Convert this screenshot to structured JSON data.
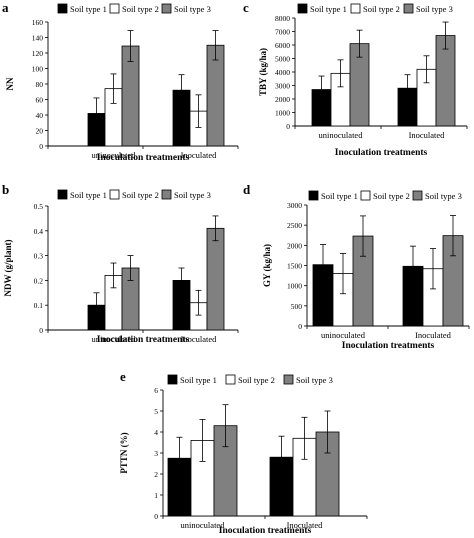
{
  "legend": [
    "Soil type 1",
    "Soil type 2",
    "Soil type 3"
  ],
  "colors": {
    "soil_type_1": "#000000",
    "soil_type_2": "#ffffff",
    "soil_type_3": "#808080"
  },
  "chart_data": [
    {
      "panel_label": "a",
      "type": "bar",
      "categories": [
        "uninoculated",
        "Inoculated"
      ],
      "series": [
        {
          "name": "Soil type 1",
          "values": [
            42,
            72
          ],
          "errors": [
            20,
            20
          ]
        },
        {
          "name": "Soil type 2",
          "values": [
            74,
            45
          ],
          "errors": [
            19,
            21
          ]
        },
        {
          "name": "Soil type 3",
          "values": [
            129,
            130
          ],
          "errors": [
            20,
            19
          ]
        }
      ],
      "xlabel": "Inoculation treatments",
      "ylabel": "NN",
      "ylim": [
        0,
        160
      ],
      "yticks": [
        "0",
        "20",
        "40",
        "60",
        "80",
        "100",
        "120",
        "140",
        "160"
      ],
      "legend_position": "top",
      "grid": false
    },
    {
      "panel_label": "b",
      "type": "bar",
      "categories": [
        "uninoculated",
        "Inoculated"
      ],
      "series": [
        {
          "name": "Soil type 1",
          "values": [
            0.1,
            0.2
          ],
          "errors": [
            0.05,
            0.05
          ]
        },
        {
          "name": "Soil type 2",
          "values": [
            0.22,
            0.11
          ],
          "errors": [
            0.05,
            0.05
          ]
        },
        {
          "name": "Soil type 3",
          "values": [
            0.25,
            0.41
          ],
          "errors": [
            0.05,
            0.05
          ]
        }
      ],
      "xlabel": "Inoculation treatments",
      "ylabel": "NDW (g/plant)",
      "ylim": [
        0,
        0.5
      ],
      "yticks": [
        "0",
        "0.1",
        "0.2",
        "0.3",
        "0.4",
        "0.5"
      ],
      "legend_position": "top",
      "grid": false
    },
    {
      "panel_label": "c",
      "type": "bar",
      "categories": [
        "uninoculated",
        "Inoculated"
      ],
      "series": [
        {
          "name": "Soil type 1",
          "values": [
            2700,
            2800
          ],
          "errors": [
            1000,
            1000
          ]
        },
        {
          "name": "Soil type 2",
          "values": [
            3900,
            4200
          ],
          "errors": [
            1000,
            1000
          ]
        },
        {
          "name": "Soil type 3",
          "values": [
            6100,
            6700
          ],
          "errors": [
            1000,
            1000
          ]
        }
      ],
      "xlabel": "Inoculation treatments",
      "ylabel": "TBY (kg/ha)",
      "ylim": [
        0,
        8000
      ],
      "yticks": [
        "0",
        "1000",
        "2000",
        "3000",
        "4000",
        "5000",
        "6000",
        "7000",
        "8000"
      ],
      "legend_position": "top",
      "grid": false
    },
    {
      "panel_label": "d",
      "type": "bar",
      "categories": [
        "uninoculated",
        "Inoculated"
      ],
      "series": [
        {
          "name": "Soil type 1",
          "values": [
            1520,
            1480
          ],
          "errors": [
            500,
            500
          ]
        },
        {
          "name": "Soil type 2",
          "values": [
            1300,
            1420
          ],
          "errors": [
            500,
            500
          ]
        },
        {
          "name": "Soil type 3",
          "values": [
            2230,
            2240
          ],
          "errors": [
            500,
            500
          ]
        }
      ],
      "xlabel": "Inoculation treatments",
      "ylabel": "GY (kg/ha)",
      "ylim": [
        0,
        3000
      ],
      "yticks": [
        "0",
        "500",
        "1000",
        "1500",
        "2000",
        "2500",
        "3000"
      ],
      "legend_position": "top",
      "grid": false
    },
    {
      "panel_label": "e",
      "type": "bar",
      "categories": [
        "uninoculated",
        "Inoculated"
      ],
      "series": [
        {
          "name": "Soil type 1",
          "values": [
            2.75,
            2.8
          ],
          "errors": [
            1.0,
            1.0
          ]
        },
        {
          "name": "Soil type 2",
          "values": [
            3.6,
            3.7
          ],
          "errors": [
            1.0,
            1.0
          ]
        },
        {
          "name": "Soil type 3",
          "values": [
            4.3,
            4.0
          ],
          "errors": [
            1.0,
            1.0
          ]
        }
      ],
      "xlabel": "Inoculation treatments",
      "ylabel": "PTTN (%)",
      "ylim": [
        0,
        6
      ],
      "yticks": [
        "0",
        "1",
        "2",
        "3",
        "4",
        "5",
        "6"
      ],
      "legend_position": "top",
      "grid": false
    }
  ]
}
